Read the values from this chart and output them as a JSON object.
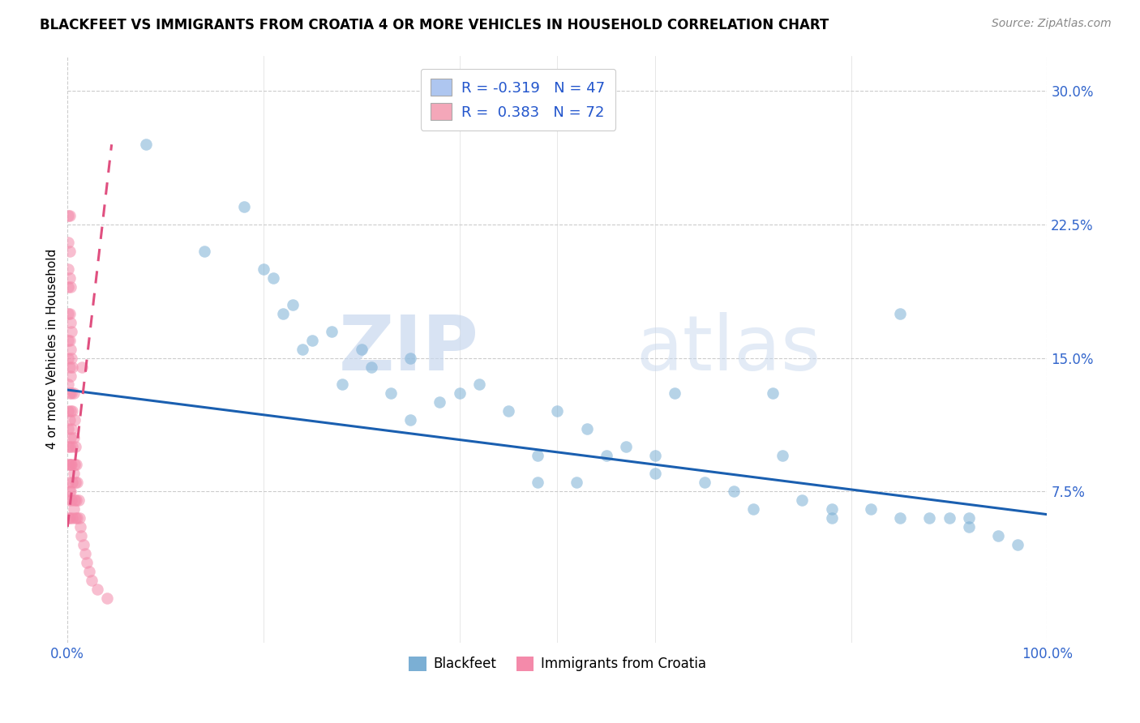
{
  "title": "BLACKFEET VS IMMIGRANTS FROM CROATIA 4 OR MORE VEHICLES IN HOUSEHOLD CORRELATION CHART",
  "source": "Source: ZipAtlas.com",
  "ylabel": "4 or more Vehicles in Household",
  "xlim": [
    0.0,
    1.0
  ],
  "ylim": [
    -0.01,
    0.32
  ],
  "xtick_labels": [
    "0.0%",
    "100.0%"
  ],
  "ytick_labels": [
    "7.5%",
    "15.0%",
    "22.5%",
    "30.0%"
  ],
  "ytick_values": [
    0.075,
    0.15,
    0.225,
    0.3
  ],
  "legend_entries": [
    {
      "label": "R = -0.319   N = 47",
      "color": "#aec6f0"
    },
    {
      "label": "R =  0.383   N = 72",
      "color": "#f4a7b9"
    }
  ],
  "watermark_zip": "ZIP",
  "watermark_atlas": "atlas",
  "blackfeet_color": "#7bafd4",
  "croatia_color": "#f48aaa",
  "blackfeet_line_color": "#1a5fb0",
  "croatia_line_color": "#e05080",
  "blackfeet_scatter": {
    "x": [
      0.08,
      0.14,
      0.18,
      0.2,
      0.21,
      0.22,
      0.23,
      0.24,
      0.25,
      0.27,
      0.28,
      0.3,
      0.31,
      0.33,
      0.35,
      0.38,
      0.4,
      0.42,
      0.45,
      0.48,
      0.5,
      0.52,
      0.53,
      0.55,
      0.57,
      0.6,
      0.62,
      0.65,
      0.68,
      0.7,
      0.73,
      0.75,
      0.78,
      0.82,
      0.85,
      0.88,
      0.9,
      0.92,
      0.95,
      0.97,
      0.85,
      0.72,
      0.48,
      0.35,
      0.6,
      0.78,
      0.92
    ],
    "y": [
      0.27,
      0.21,
      0.235,
      0.2,
      0.195,
      0.175,
      0.18,
      0.155,
      0.16,
      0.165,
      0.135,
      0.155,
      0.145,
      0.13,
      0.15,
      0.125,
      0.13,
      0.135,
      0.12,
      0.095,
      0.12,
      0.08,
      0.11,
      0.095,
      0.1,
      0.095,
      0.13,
      0.08,
      0.075,
      0.065,
      0.095,
      0.07,
      0.065,
      0.065,
      0.06,
      0.06,
      0.06,
      0.055,
      0.05,
      0.045,
      0.175,
      0.13,
      0.08,
      0.115,
      0.085,
      0.06,
      0.06
    ]
  },
  "croatia_scatter": {
    "x": [
      0.001,
      0.001,
      0.001,
      0.001,
      0.001,
      0.001,
      0.001,
      0.001,
      0.001,
      0.001,
      0.001,
      0.001,
      0.001,
      0.001,
      0.001,
      0.002,
      0.002,
      0.002,
      0.002,
      0.002,
      0.002,
      0.002,
      0.002,
      0.002,
      0.002,
      0.002,
      0.002,
      0.003,
      0.003,
      0.003,
      0.003,
      0.003,
      0.003,
      0.003,
      0.003,
      0.004,
      0.004,
      0.004,
      0.004,
      0.004,
      0.004,
      0.005,
      0.005,
      0.005,
      0.005,
      0.005,
      0.006,
      0.006,
      0.006,
      0.006,
      0.007,
      0.007,
      0.007,
      0.008,
      0.008,
      0.008,
      0.009,
      0.009,
      0.01,
      0.01,
      0.011,
      0.012,
      0.013,
      0.014,
      0.015,
      0.016,
      0.018,
      0.02,
      0.022,
      0.025,
      0.03,
      0.04
    ],
    "y": [
      0.23,
      0.215,
      0.2,
      0.19,
      0.175,
      0.16,
      0.15,
      0.135,
      0.12,
      0.11,
      0.1,
      0.09,
      0.08,
      0.07,
      0.06,
      0.23,
      0.21,
      0.195,
      0.175,
      0.16,
      0.145,
      0.13,
      0.115,
      0.1,
      0.09,
      0.075,
      0.06,
      0.19,
      0.17,
      0.155,
      0.14,
      0.12,
      0.105,
      0.09,
      0.075,
      0.165,
      0.15,
      0.13,
      0.11,
      0.09,
      0.07,
      0.145,
      0.12,
      0.1,
      0.08,
      0.06,
      0.13,
      0.105,
      0.085,
      0.065,
      0.115,
      0.09,
      0.07,
      0.1,
      0.08,
      0.06,
      0.09,
      0.07,
      0.08,
      0.06,
      0.07,
      0.06,
      0.055,
      0.05,
      0.145,
      0.045,
      0.04,
      0.035,
      0.03,
      0.025,
      0.02,
      0.015
    ]
  },
  "blackfeet_line": {
    "x0": 0.0,
    "x1": 1.0,
    "y0": 0.132,
    "y1": 0.062
  },
  "croatia_line": {
    "x0": 0.0,
    "x1": 0.045,
    "y0": 0.055,
    "y1": 0.27
  }
}
